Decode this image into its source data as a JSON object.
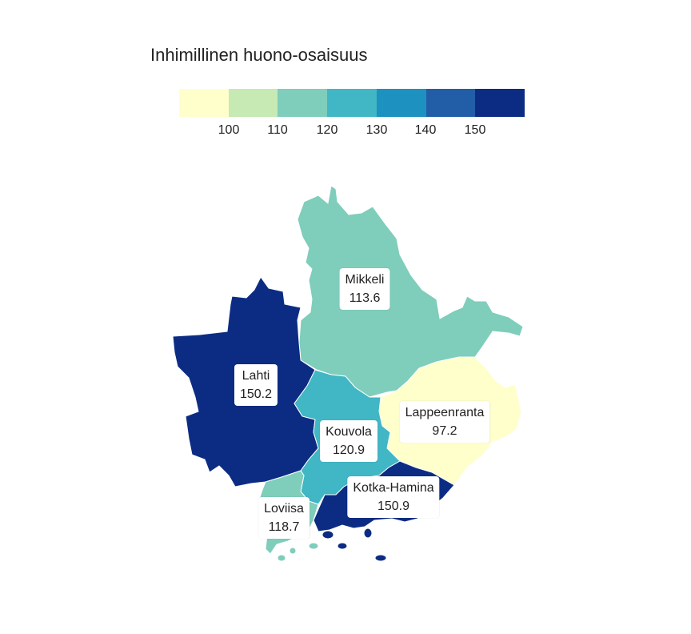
{
  "title": "Inhimillinen huono-osaisuus",
  "legend": {
    "colors": [
      "#ffffcc",
      "#c7e9b4",
      "#7fcdbb",
      "#41b6c4",
      "#1d91c0",
      "#225ea8",
      "#0c2c84"
    ],
    "ticks": [
      "100",
      "110",
      "120",
      "130",
      "140",
      "150"
    ]
  },
  "regions": [
    {
      "name": "Mikkeli",
      "value": "113.6",
      "color": "#7fcdbb"
    },
    {
      "name": "Lahti",
      "value": "150.2",
      "color": "#0c2c84"
    },
    {
      "name": "Lappeenranta",
      "value": "97.2",
      "color": "#ffffcc"
    },
    {
      "name": "Kouvola",
      "value": "120.9",
      "color": "#41b6c4"
    },
    {
      "name": "Kotka-Hamina",
      "value": "150.9",
      "color": "#0c2c84"
    },
    {
      "name": "Loviisa",
      "value": "118.7",
      "color": "#7fcdbb"
    }
  ]
}
